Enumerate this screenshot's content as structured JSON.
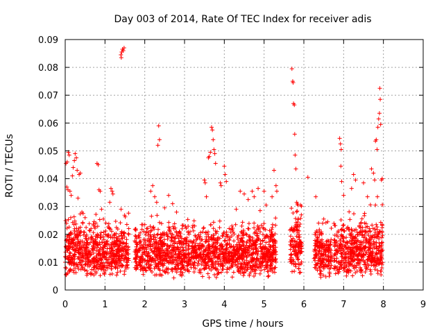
{
  "chart_data": {
    "type": "scatter",
    "title": "Day 003 of 2014, Rate Of TEC Index for receiver adis",
    "xlabel": "GPS time / hours",
    "ylabel": "ROTI / TECUs",
    "xlim": [
      0,
      9
    ],
    "ylim": [
      0,
      0.09
    ],
    "xticks": [
      "0",
      "1",
      "2",
      "3",
      "4",
      "5",
      "6",
      "7",
      "8",
      "9"
    ],
    "yticks": [
      "0",
      "0.01",
      "0.02",
      "0.03",
      "0.04",
      "0.05",
      "0.06",
      "0.07",
      "0.08",
      "0.09"
    ],
    "grid": true,
    "marker": "+",
    "color": "#ff0000",
    "series": [
      {
        "name": "ROTI",
        "points": [
          [
            0.02,
            0.0455
          ],
          [
            0.05,
            0.046
          ],
          [
            0.08,
            0.0495
          ],
          [
            0.1,
            0.0485
          ],
          [
            0.04,
            0.037
          ],
          [
            0.07,
            0.036
          ],
          [
            0.12,
            0.0355
          ],
          [
            0.15,
            0.034
          ],
          [
            0.2,
            0.044
          ],
          [
            0.23,
            0.0465
          ],
          [
            0.25,
            0.049
          ],
          [
            0.28,
            0.0475
          ],
          [
            0.3,
            0.043
          ],
          [
            0.18,
            0.041
          ],
          [
            0.35,
            0.0415
          ],
          [
            0.38,
            0.042
          ],
          [
            0.32,
            0.033
          ],
          [
            0.42,
            0.028
          ],
          [
            0.45,
            0.0275
          ],
          [
            0.5,
            0.026
          ],
          [
            0.03,
            0.0055
          ],
          [
            0.06,
            0.006
          ],
          [
            0.1,
            0.0065
          ],
          [
            0.22,
            0.0235
          ],
          [
            0.8,
            0.0455
          ],
          [
            0.83,
            0.045
          ],
          [
            0.85,
            0.036
          ],
          [
            0.88,
            0.0355
          ],
          [
            1.15,
            0.0365
          ],
          [
            1.18,
            0.0355
          ],
          [
            1.2,
            0.0345
          ],
          [
            1.12,
            0.0315
          ],
          [
            1.4,
            0.0845
          ],
          [
            1.42,
            0.0855
          ],
          [
            1.44,
            0.0865
          ],
          [
            1.46,
            0.086
          ],
          [
            1.48,
            0.087
          ],
          [
            1.41,
            0.0835
          ],
          [
            2.0,
            0.0235
          ],
          [
            2.05,
            0.022
          ],
          [
            2.15,
            0.0355
          ],
          [
            2.2,
            0.0375
          ],
          [
            2.25,
            0.0335
          ],
          [
            2.3,
            0.0315
          ],
          [
            2.35,
            0.059
          ],
          [
            2.37,
            0.054
          ],
          [
            2.33,
            0.052
          ],
          [
            2.5,
            0.0295
          ],
          [
            2.6,
            0.034
          ],
          [
            2.7,
            0.031
          ],
          [
            2.8,
            0.028
          ],
          [
            3.5,
            0.0395
          ],
          [
            3.52,
            0.0385
          ],
          [
            3.55,
            0.0335
          ],
          [
            3.6,
            0.0475
          ],
          [
            3.62,
            0.048
          ],
          [
            3.65,
            0.0495
          ],
          [
            3.68,
            0.0585
          ],
          [
            3.7,
            0.0575
          ],
          [
            3.72,
            0.054
          ],
          [
            3.74,
            0.0505
          ],
          [
            3.76,
            0.049
          ],
          [
            3.78,
            0.0455
          ],
          [
            3.9,
            0.0385
          ],
          [
            3.92,
            0.0375
          ],
          [
            4.0,
            0.0445
          ],
          [
            4.02,
            0.0415
          ],
          [
            4.05,
            0.039
          ],
          [
            4.3,
            0.029
          ],
          [
            4.4,
            0.0355
          ],
          [
            4.5,
            0.0345
          ],
          [
            4.6,
            0.0325
          ],
          [
            4.7,
            0.0355
          ],
          [
            4.75,
            0.0335
          ],
          [
            4.85,
            0.0365
          ],
          [
            4.9,
            0.0285
          ],
          [
            5.0,
            0.0355
          ],
          [
            5.05,
            0.0305
          ],
          [
            5.2,
            0.0335
          ],
          [
            5.25,
            0.043
          ],
          [
            5.3,
            0.0375
          ],
          [
            5.32,
            0.0355
          ],
          [
            5.7,
            0.0795
          ],
          [
            5.72,
            0.075
          ],
          [
            5.73,
            0.0745
          ],
          [
            5.74,
            0.067
          ],
          [
            5.76,
            0.0665
          ],
          [
            5.77,
            0.056
          ],
          [
            5.78,
            0.0485
          ],
          [
            5.8,
            0.0435
          ],
          [
            5.82,
            0.0315
          ],
          [
            5.85,
            0.0305
          ],
          [
            6.1,
            0.0405
          ],
          [
            6.3,
            0.0335
          ],
          [
            6.5,
            0.0255
          ],
          [
            6.6,
            0.0245
          ],
          [
            6.9,
            0.0545
          ],
          [
            6.92,
            0.0525
          ],
          [
            6.94,
            0.0505
          ],
          [
            6.93,
            0.0445
          ],
          [
            6.95,
            0.039
          ],
          [
            7.0,
            0.034
          ],
          [
            7.2,
            0.0365
          ],
          [
            7.25,
            0.0415
          ],
          [
            7.3,
            0.0395
          ],
          [
            7.5,
            0.0385
          ],
          [
            7.6,
            0.0335
          ],
          [
            7.7,
            0.0435
          ],
          [
            7.75,
            0.042
          ],
          [
            7.78,
            0.0395
          ],
          [
            7.8,
            0.0535
          ],
          [
            7.82,
            0.054
          ],
          [
            7.84,
            0.0505
          ],
          [
            7.86,
            0.0585
          ],
          [
            7.88,
            0.0615
          ],
          [
            7.9,
            0.0635
          ],
          [
            7.91,
            0.0725
          ],
          [
            7.92,
            0.0685
          ],
          [
            7.93,
            0.0595
          ],
          [
            7.95,
            0.0395
          ],
          [
            7.97,
            0.04
          ],
          [
            7.85,
            0.0335
          ],
          [
            7.8,
            0.0305
          ]
        ]
      }
    ],
    "dense_bands": [
      {
        "x": [
          0.0,
          1.6
        ],
        "y": [
          0.004,
          0.027
        ]
      },
      {
        "x": [
          1.75,
          2.95
        ],
        "y": [
          0.004,
          0.026
        ]
      },
      {
        "x": [
          2.95,
          5.3
        ],
        "y": [
          0.004,
          0.025
        ]
      },
      {
        "x": [
          5.65,
          5.95
        ],
        "y": [
          0.005,
          0.03
        ]
      },
      {
        "x": [
          6.25,
          6.7
        ],
        "y": [
          0.004,
          0.025
        ]
      },
      {
        "x": [
          6.75,
          7.98
        ],
        "y": [
          0.004,
          0.028
        ]
      }
    ],
    "dense_points_per_hour": 420
  }
}
